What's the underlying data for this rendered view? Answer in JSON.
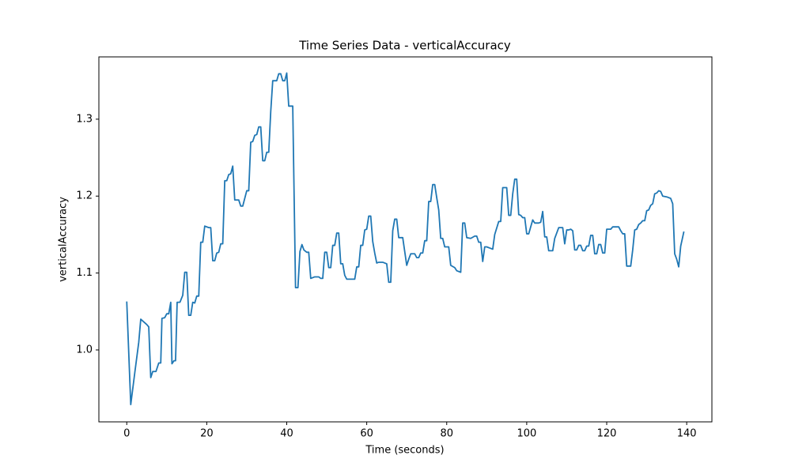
{
  "chart_data": {
    "type": "line",
    "title": "Time Series Data - verticalAccuracy",
    "x_label": "Time (seconds)",
    "y_label": "verticalAccuracy",
    "color": "#1f77b4",
    "xlim": [
      -6.97,
      146.3
    ],
    "ylim": [
      0.9065,
      1.381
    ],
    "xticks": [
      0,
      20,
      40,
      60,
      80,
      100,
      120,
      140
    ],
    "yticks": [
      {
        "value": 1.0,
        "label": "1.0"
      },
      1.1,
      1.2,
      1.3
    ],
    "x": [
      0,
      1,
      2,
      3,
      3.5,
      5,
      5.5,
      6,
      6.5,
      7.3,
      8,
      8.5,
      8.8,
      9.5,
      10,
      10.5,
      11,
      11.3,
      11.8,
      12.2,
      12.6,
      13.3,
      14,
      14.5,
      15,
      15.5,
      16,
      16.5,
      17,
      17.5,
      18,
      18.5,
      19,
      19.5,
      20.5,
      21,
      21.5,
      22,
      22.5,
      23,
      23.5,
      24,
      24.5,
      25,
      25.5,
      26,
      26.5,
      27,
      28,
      28.5,
      29,
      29.5,
      30,
      30.5,
      31,
      31.5,
      32,
      32.5,
      33,
      33.5,
      34,
      34.5,
      35,
      35.5,
      36,
      36.5,
      37.5,
      38,
      38.5,
      39,
      39.5,
      40,
      40.5,
      41.5,
      42.2,
      42.8,
      43.3,
      43.8,
      44.3,
      45,
      45.5,
      46,
      47,
      48,
      48.5,
      49,
      49.5,
      50,
      50.5,
      51,
      51.5,
      52,
      52.5,
      53,
      53.5,
      54,
      54.5,
      55,
      56,
      57,
      57.5,
      58,
      58.5,
      59,
      59.5,
      60,
      60.5,
      61,
      61.5,
      62,
      62.5,
      63,
      64,
      65,
      65.5,
      66,
      66.5,
      67,
      67.5,
      68,
      69,
      69.5,
      70,
      70.5,
      71,
      72,
      72.5,
      73,
      73.5,
      74,
      74.5,
      75,
      75.5,
      76,
      76.5,
      77,
      77.5,
      78,
      78.5,
      79,
      79.5,
      80,
      80.5,
      81,
      82,
      82.5,
      83.5,
      84,
      84.5,
      85,
      86,
      87,
      87.5,
      88,
      88.5,
      89,
      89.5,
      90,
      91,
      91.5,
      92,
      93,
      93.5,
      94,
      95,
      95.5,
      96,
      96.5,
      97,
      97.5,
      98,
      98.5,
      99,
      99.5,
      100,
      100.5,
      101,
      101.5,
      102,
      103,
      103.5,
      104,
      104.5,
      105,
      105.5,
      106.5,
      107,
      108,
      109,
      109.5,
      110,
      110.5,
      111,
      111.5,
      112,
      112.5,
      113,
      113.5,
      114,
      114.5,
      115,
      115.5,
      116,
      116.5,
      117,
      117.5,
      118,
      118.5,
      119,
      119.5,
      120,
      121,
      121.5,
      123,
      123.5,
      124,
      124.5,
      125,
      126,
      126.5,
      127,
      127.5,
      128,
      128.5,
      129,
      129.5,
      130,
      130.5,
      131,
      131.5,
      132,
      132.5,
      133,
      133.5,
      134,
      135,
      136,
      136.5,
      137,
      137.5,
      138,
      138.5,
      139.3
    ],
    "values": [
      1.063,
      0.929,
      0.97,
      1.01,
      1.04,
      1.033,
      1.03,
      0.964,
      0.972,
      0.972,
      0.983,
      0.983,
      1.041,
      1.042,
      1.047,
      1.047,
      1.062,
      0.982,
      0.986,
      0.986,
      1.062,
      1.062,
      1.071,
      1.101,
      1.101,
      1.045,
      1.045,
      1.062,
      1.061,
      1.07,
      1.07,
      1.14,
      1.14,
      1.161,
      1.159,
      1.159,
      1.116,
      1.116,
      1.126,
      1.127,
      1.138,
      1.138,
      1.22,
      1.22,
      1.228,
      1.229,
      1.239,
      1.195,
      1.195,
      1.187,
      1.187,
      1.197,
      1.207,
      1.207,
      1.27,
      1.271,
      1.279,
      1.28,
      1.29,
      1.29,
      1.246,
      1.246,
      1.257,
      1.257,
      1.31,
      1.35,
      1.35,
      1.359,
      1.359,
      1.35,
      1.35,
      1.36,
      1.317,
      1.317,
      1.081,
      1.081,
      1.128,
      1.137,
      1.13,
      1.127,
      1.127,
      1.093,
      1.095,
      1.095,
      1.093,
      1.093,
      1.127,
      1.127,
      1.107,
      1.107,
      1.136,
      1.136,
      1.152,
      1.152,
      1.112,
      1.112,
      1.097,
      1.092,
      1.092,
      1.092,
      1.108,
      1.108,
      1.136,
      1.136,
      1.156,
      1.157,
      1.174,
      1.174,
      1.141,
      1.126,
      1.113,
      1.114,
      1.114,
      1.112,
      1.088,
      1.088,
      1.155,
      1.17,
      1.17,
      1.146,
      1.146,
      1.128,
      1.11,
      1.118,
      1.125,
      1.125,
      1.12,
      1.12,
      1.126,
      1.126,
      1.142,
      1.142,
      1.193,
      1.193,
      1.215,
      1.215,
      1.198,
      1.182,
      1.145,
      1.145,
      1.134,
      1.134,
      1.134,
      1.11,
      1.107,
      1.103,
      1.101,
      1.165,
      1.165,
      1.146,
      1.145,
      1.148,
      1.148,
      1.14,
      1.14,
      1.115,
      1.134,
      1.134,
      1.132,
      1.131,
      1.15,
      1.167,
      1.167,
      1.211,
      1.211,
      1.175,
      1.175,
      1.203,
      1.222,
      1.222,
      1.176,
      1.175,
      1.172,
      1.172,
      1.151,
      1.151,
      1.16,
      1.169,
      1.165,
      1.165,
      1.166,
      1.18,
      1.147,
      1.147,
      1.129,
      1.129,
      1.145,
      1.159,
      1.159,
      1.138,
      1.156,
      1.156,
      1.157,
      1.155,
      1.13,
      1.13,
      1.136,
      1.136,
      1.129,
      1.129,
      1.135,
      1.135,
      1.149,
      1.149,
      1.125,
      1.125,
      1.137,
      1.137,
      1.126,
      1.126,
      1.157,
      1.157,
      1.16,
      1.16,
      1.155,
      1.151,
      1.151,
      1.109,
      1.109,
      1.13,
      1.156,
      1.157,
      1.163,
      1.165,
      1.168,
      1.168,
      1.181,
      1.182,
      1.188,
      1.19,
      1.203,
      1.204,
      1.207,
      1.206,
      1.2,
      1.199,
      1.197,
      1.19,
      1.125,
      1.118,
      1.108,
      1.135,
      1.154
    ]
  }
}
